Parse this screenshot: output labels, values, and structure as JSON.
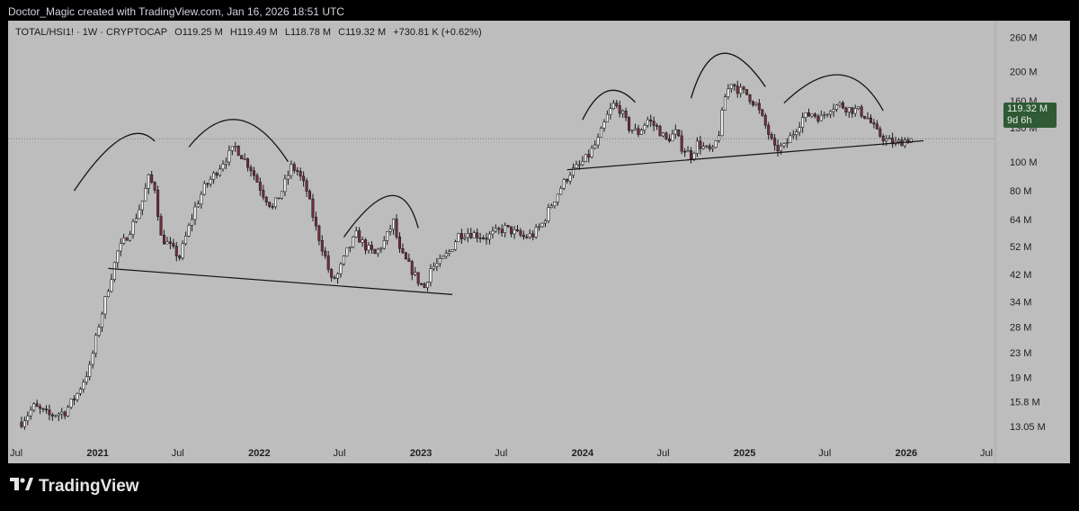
{
  "header": {
    "caption": "Doctor_Magic created with TradingView.com, Jan 16, 2026 18:51 UTC"
  },
  "legend": {
    "symbol": "TOTAL/HSI1! · 1W · CRYPTOCAP",
    "open": "O119.25 M",
    "high": "H119.49 M",
    "low": "L118.78 M",
    "close": "C119.32 M",
    "change": "+730.81 K (+0.62%)"
  },
  "price_tag": {
    "value": "119.32 M",
    "countdown": "9d 6h"
  },
  "brand": {
    "name": "TradingView"
  },
  "colors": {
    "background": "#000000",
    "panel": "#bdbdbd",
    "candle_up": "#ffffff",
    "candle_down": "#7a2e3b",
    "wick": "#1a1a1a",
    "trendline": "#141414",
    "price_tag": "#2f5a34"
  },
  "chart_data": {
    "type": "candlestick",
    "title": "TOTAL/HSI1! · 1W · CRYPTOCAP",
    "y_scale": "log",
    "y_unit": "M",
    "y_ticks": [
      "260 M",
      "200 M",
      "160 M",
      "130 M",
      "100 M",
      "80 M",
      "64 M",
      "52 M",
      "42 M",
      "34 M",
      "28 M",
      "23 M",
      "19 M",
      "15.8 M",
      "13.05 M"
    ],
    "y_tick_values": [
      260,
      200,
      160,
      130,
      100,
      80,
      64,
      52,
      42,
      34,
      28,
      23,
      19,
      15.8,
      13.05
    ],
    "ylim": [
      11.6,
      280
    ],
    "x_ticks": [
      {
        "label": "Jul",
        "date": "2020-07-01",
        "bold": false
      },
      {
        "label": "2021",
        "date": "2021-01-01",
        "bold": true
      },
      {
        "label": "Jul",
        "date": "2021-07-01",
        "bold": false
      },
      {
        "label": "2022",
        "date": "2022-01-01",
        "bold": true
      },
      {
        "label": "Jul",
        "date": "2022-07-01",
        "bold": false
      },
      {
        "label": "2023",
        "date": "2023-01-01",
        "bold": true
      },
      {
        "label": "Jul",
        "date": "2023-07-01",
        "bold": false
      },
      {
        "label": "2024",
        "date": "2024-01-01",
        "bold": true
      },
      {
        "label": "Jul",
        "date": "2024-07-01",
        "bold": false
      },
      {
        "label": "2025",
        "date": "2025-01-01",
        "bold": true
      },
      {
        "label": "Jul",
        "date": "2025-07-01",
        "bold": false
      },
      {
        "label": "2026",
        "date": "2026-01-01",
        "bold": true
      },
      {
        "label": "Jul",
        "date": "2026-07-01",
        "bold": false
      }
    ],
    "last_price": 119.32,
    "close_path": [
      [
        "2020-07-13",
        13.5
      ],
      [
        "2020-08-10",
        15.2
      ],
      [
        "2020-09-14",
        14.2
      ],
      [
        "2020-10-19",
        14.6
      ],
      [
        "2020-11-16",
        16.8
      ],
      [
        "2020-12-14",
        20.5
      ],
      [
        "2021-01-04",
        28.5
      ],
      [
        "2021-01-25",
        38.0
      ],
      [
        "2021-02-15",
        50.0
      ],
      [
        "2021-03-01",
        54.0
      ],
      [
        "2021-03-22",
        62.0
      ],
      [
        "2021-04-12",
        74.0
      ],
      [
        "2021-04-26",
        88.0
      ],
      [
        "2021-05-10",
        82.0
      ],
      [
        "2021-05-24",
        56.0
      ],
      [
        "2021-06-14",
        52.0
      ],
      [
        "2021-07-05",
        48.0
      ],
      [
        "2021-07-19",
        56.0
      ],
      [
        "2021-08-09",
        70.0
      ],
      [
        "2021-08-30",
        82.0
      ],
      [
        "2021-09-20",
        90.0
      ],
      [
        "2021-10-11",
        100.0
      ],
      [
        "2021-11-08",
        112.0
      ],
      [
        "2021-11-22",
        105.0
      ],
      [
        "2021-12-13",
        95.0
      ],
      [
        "2022-01-10",
        78.0
      ],
      [
        "2022-01-31",
        70.0
      ],
      [
        "2022-02-21",
        80.0
      ],
      [
        "2022-03-14",
        96.0
      ],
      [
        "2022-03-28",
        93.0
      ],
      [
        "2022-04-18",
        80.0
      ],
      [
        "2022-05-09",
        60.0
      ],
      [
        "2022-05-30",
        48.0
      ],
      [
        "2022-06-13",
        40.0
      ],
      [
        "2022-06-27",
        42.0
      ],
      [
        "2022-07-18",
        50.0
      ],
      [
        "2022-08-08",
        57.0
      ],
      [
        "2022-08-29",
        52.0
      ],
      [
        "2022-09-19",
        49.0
      ],
      [
        "2022-10-10",
        54.0
      ],
      [
        "2022-10-31",
        63.0
      ],
      [
        "2022-11-14",
        50.0
      ],
      [
        "2022-12-05",
        45.0
      ],
      [
        "2022-12-26",
        40.0
      ],
      [
        "2023-01-09",
        38.0
      ],
      [
        "2023-01-23",
        44.0
      ],
      [
        "2023-02-13",
        46.0
      ],
      [
        "2023-03-06",
        50.0
      ],
      [
        "2023-03-27",
        57.0
      ],
      [
        "2023-04-17",
        58.0
      ],
      [
        "2023-05-08",
        57.0
      ],
      [
        "2023-05-29",
        56.0
      ],
      [
        "2023-06-19",
        58.0
      ],
      [
        "2023-07-10",
        60.0
      ],
      [
        "2023-07-31",
        58.0
      ],
      [
        "2023-08-21",
        56.0
      ],
      [
        "2023-09-11",
        57.0
      ],
      [
        "2023-10-02",
        62.0
      ],
      [
        "2023-10-23",
        72.0
      ],
      [
        "2023-11-13",
        82.0
      ],
      [
        "2023-12-04",
        92.0
      ],
      [
        "2023-12-25",
        97.0
      ],
      [
        "2024-01-15",
        105.0
      ],
      [
        "2024-02-05",
        118.0
      ],
      [
        "2024-02-26",
        142.0
      ],
      [
        "2024-03-11",
        155.0
      ],
      [
        "2024-03-25",
        150.0
      ],
      [
        "2024-04-15",
        130.0
      ],
      [
        "2024-05-06",
        125.0
      ],
      [
        "2024-05-27",
        138.0
      ],
      [
        "2024-06-17",
        130.0
      ],
      [
        "2024-07-08",
        118.0
      ],
      [
        "2024-07-29",
        125.0
      ],
      [
        "2024-08-12",
        112.0
      ],
      [
        "2024-09-02",
        105.0
      ],
      [
        "2024-09-16",
        115.0
      ],
      [
        "2024-10-07",
        110.0
      ],
      [
        "2024-10-21",
        108.0
      ],
      [
        "2024-11-04",
        125.0
      ],
      [
        "2024-11-18",
        165.0
      ],
      [
        "2024-12-02",
        185.0
      ],
      [
        "2024-12-16",
        175.0
      ],
      [
        "2025-01-06",
        168.0
      ],
      [
        "2025-01-27",
        155.0
      ],
      [
        "2025-02-17",
        132.0
      ],
      [
        "2025-03-10",
        110.0
      ],
      [
        "2025-03-31",
        112.0
      ],
      [
        "2025-04-21",
        125.0
      ],
      [
        "2025-05-12",
        140.0
      ],
      [
        "2025-06-02",
        145.0
      ],
      [
        "2025-06-23",
        140.0
      ],
      [
        "2025-07-14",
        152.0
      ],
      [
        "2025-08-04",
        155.0
      ],
      [
        "2025-08-25",
        150.0
      ],
      [
        "2025-09-15",
        148.0
      ],
      [
        "2025-10-06",
        140.0
      ],
      [
        "2025-10-27",
        125.0
      ],
      [
        "2025-11-17",
        118.0
      ],
      [
        "2025-12-08",
        115.0
      ],
      [
        "2025-12-29",
        118.0
      ],
      [
        "2026-01-12",
        119.3
      ]
    ],
    "trendlines": [
      {
        "from": [
          "2021-01-25",
          44.0
        ],
        "to": [
          "2023-03-13",
          36.0
        ]
      },
      {
        "from": [
          "2023-11-27",
          94.0
        ],
        "to": [
          "2026-02-09",
          117.5
        ]
      }
    ],
    "arcs": [
      {
        "from": [
          "2020-11-09",
          80.0
        ],
        "peak": [
          "2021-02-22",
          119.0
        ],
        "to": [
          "2021-05-10",
          117.0
        ]
      },
      {
        "from": [
          "2021-07-26",
          112.0
        ],
        "peak": [
          "2021-11-15",
          138.0
        ],
        "to": [
          "2022-03-07",
          100.0
        ]
      },
      {
        "from": [
          "2022-07-11",
          56.0
        ],
        "peak": [
          "2022-10-24",
          77.0
        ],
        "to": [
          "2022-12-26",
          60.0
        ]
      },
      {
        "from": [
          "2024-01-01",
          138.0
        ],
        "peak": [
          "2024-02-26",
          172.0
        ],
        "to": [
          "2024-04-29",
          158.0
        ]
      },
      {
        "from": [
          "2024-09-02",
          163.0
        ],
        "peak": [
          "2024-11-11",
          230.0
        ],
        "to": [
          "2025-02-17",
          178.0
        ]
      },
      {
        "from": [
          "2025-03-31",
          157.0
        ],
        "peak": [
          "2025-08-04",
          195.0
        ],
        "to": [
          "2025-11-10",
          148.0
        ]
      }
    ]
  }
}
